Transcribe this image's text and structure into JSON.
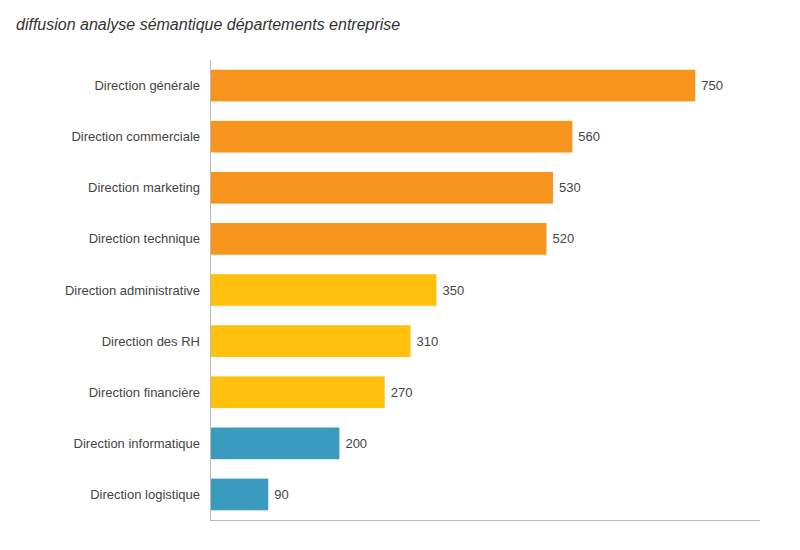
{
  "chart_data": {
    "type": "bar",
    "orientation": "horizontal",
    "title": "diffusion analyse sémantique départements entreprise",
    "categories": [
      "Direction générale",
      "Direction commerciale",
      "Direction marketing",
      "Direction technique",
      "Direction administrative",
      "Direction des RH",
      "Direction financière",
      "Direction informatique",
      "Direction logistique"
    ],
    "values": [
      750,
      560,
      530,
      520,
      350,
      310,
      270,
      200,
      90
    ],
    "colors": [
      "#F7941D",
      "#F7941D",
      "#F7941D",
      "#F7941D",
      "#FFC10E",
      "#FFC10E",
      "#FFC10E",
      "#3B9BBF",
      "#3B9BBF"
    ],
    "xlim": [
      0,
      850
    ],
    "grid": false,
    "data_labels": true,
    "tick_labels": "y"
  }
}
